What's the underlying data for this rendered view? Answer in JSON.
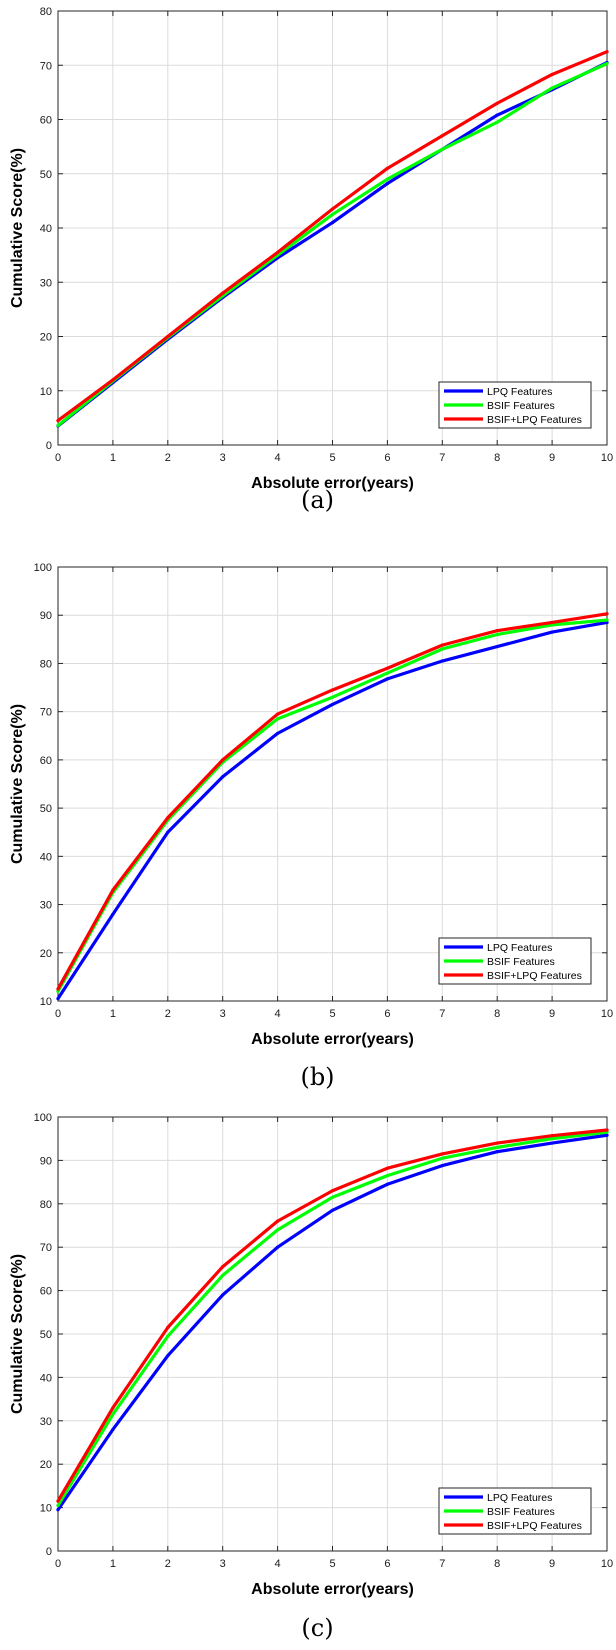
{
  "chart_data": [
    {
      "type": "line",
      "caption": "(a)",
      "xlabel": "Absolute error(years)",
      "ylabel": "Cumulative Score(%)",
      "xlim": [
        0,
        10
      ],
      "ylim": [
        0,
        80
      ],
      "xticks": [
        0,
        1,
        2,
        3,
        4,
        5,
        6,
        7,
        8,
        9,
        10
      ],
      "yticks": [
        0,
        10,
        20,
        30,
        40,
        50,
        60,
        70,
        80
      ],
      "grid": true,
      "legend_position": "lower-right",
      "x": [
        0,
        1,
        2,
        3,
        4,
        5,
        6,
        7,
        8,
        9,
        10
      ],
      "series": [
        {
          "name": "LPQ Features",
          "color": "#0000ff",
          "values": [
            3.5,
            11.5,
            19.5,
            27.2,
            34.5,
            41.0,
            48.2,
            54.5,
            60.8,
            65.5,
            70.5
          ]
        },
        {
          "name": "BSIF Features",
          "color": "#00ff00",
          "values": [
            3.6,
            11.8,
            19.8,
            27.5,
            35.0,
            42.5,
            49.0,
            54.5,
            59.5,
            65.8,
            70.3
          ]
        },
        {
          "name": "BSIF+LPQ Features",
          "color": "#ff0000",
          "values": [
            4.5,
            12.0,
            20.0,
            28.0,
            35.5,
            43.5,
            51.0,
            57.0,
            63.0,
            68.3,
            72.5
          ]
        }
      ]
    },
    {
      "type": "line",
      "caption": "(b)",
      "xlabel": "Absolute error(years)",
      "ylabel": "Cumulative Score(%)",
      "xlim": [
        0,
        10
      ],
      "ylim": [
        10,
        100
      ],
      "xticks": [
        0,
        1,
        2,
        3,
        4,
        5,
        6,
        7,
        8,
        9,
        10
      ],
      "yticks": [
        10,
        20,
        30,
        40,
        50,
        60,
        70,
        80,
        90,
        100
      ],
      "grid": true,
      "legend_position": "lower-right",
      "x": [
        0,
        1,
        2,
        3,
        4,
        5,
        6,
        7,
        8,
        9,
        10
      ],
      "series": [
        {
          "name": "LPQ Features",
          "color": "#0000ff",
          "values": [
            10.5,
            28.0,
            45.0,
            56.5,
            65.5,
            71.5,
            76.8,
            80.5,
            83.5,
            86.5,
            88.5
          ]
        },
        {
          "name": "BSIF Features",
          "color": "#00ff00",
          "values": [
            12.0,
            32.5,
            47.5,
            59.5,
            68.5,
            73.0,
            78.0,
            83.0,
            86.0,
            88.0,
            89.0
          ]
        },
        {
          "name": "BSIF+LPQ Features",
          "color": "#ff0000",
          "values": [
            12.5,
            33.0,
            48.0,
            60.0,
            69.5,
            74.5,
            79.0,
            83.8,
            86.8,
            88.5,
            90.3
          ]
        }
      ]
    },
    {
      "type": "line",
      "caption": "(c)",
      "xlabel": "Absolute error(years)",
      "ylabel": "Cumulative Score(%)",
      "xlim": [
        0,
        10
      ],
      "ylim": [
        0,
        100
      ],
      "xticks": [
        0,
        1,
        2,
        3,
        4,
        5,
        6,
        7,
        8,
        9,
        10
      ],
      "yticks": [
        0,
        10,
        20,
        30,
        40,
        50,
        60,
        70,
        80,
        90,
        100
      ],
      "grid": true,
      "legend_position": "lower-right",
      "x": [
        0,
        1,
        2,
        3,
        4,
        5,
        6,
        7,
        8,
        9,
        10
      ],
      "series": [
        {
          "name": "LPQ Features",
          "color": "#0000ff",
          "values": [
            9.5,
            28.0,
            45.0,
            59.0,
            70.0,
            78.5,
            84.5,
            88.8,
            92.0,
            94.0,
            95.8
          ]
        },
        {
          "name": "BSIF Features",
          "color": "#00ff00",
          "values": [
            10.5,
            31.5,
            49.5,
            63.5,
            74.0,
            81.5,
            86.5,
            90.5,
            93.0,
            95.0,
            96.5
          ]
        },
        {
          "name": "BSIF+LPQ Features",
          "color": "#ff0000",
          "values": [
            11.5,
            33.0,
            51.5,
            65.5,
            76.0,
            83.0,
            88.2,
            91.5,
            94.0,
            95.7,
            97.0
          ]
        }
      ]
    }
  ]
}
